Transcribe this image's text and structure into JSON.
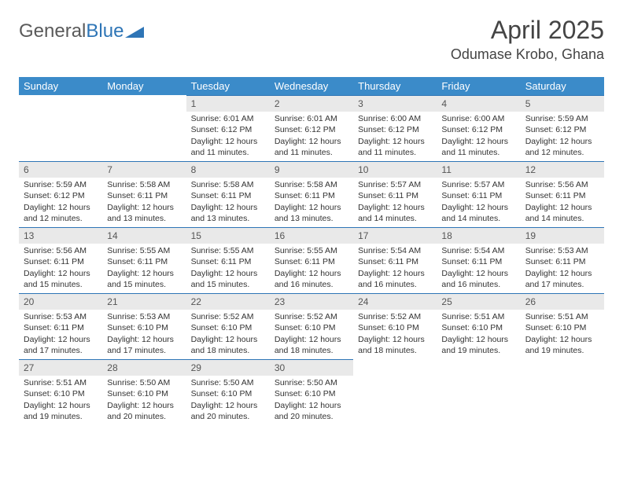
{
  "logo": {
    "word1": "General",
    "word2": "Blue"
  },
  "header": {
    "month_title": "April 2025",
    "location": "Odumase Krobo, Ghana"
  },
  "colors": {
    "header_bg": "#3b8bc9",
    "header_text": "#ffffff",
    "daynum_bg": "#e9e9e9",
    "daynum_border": "#2e75b6",
    "body_text": "#333333",
    "logo_gray": "#5a5a5a",
    "logo_blue": "#2e75b6"
  },
  "weekdays": [
    "Sunday",
    "Monday",
    "Tuesday",
    "Wednesday",
    "Thursday",
    "Friday",
    "Saturday"
  ],
  "weeks": [
    [
      null,
      null,
      {
        "n": "1",
        "sr": "Sunrise: 6:01 AM",
        "ss": "Sunset: 6:12 PM",
        "d1": "Daylight: 12 hours",
        "d2": "and 11 minutes."
      },
      {
        "n": "2",
        "sr": "Sunrise: 6:01 AM",
        "ss": "Sunset: 6:12 PM",
        "d1": "Daylight: 12 hours",
        "d2": "and 11 minutes."
      },
      {
        "n": "3",
        "sr": "Sunrise: 6:00 AM",
        "ss": "Sunset: 6:12 PM",
        "d1": "Daylight: 12 hours",
        "d2": "and 11 minutes."
      },
      {
        "n": "4",
        "sr": "Sunrise: 6:00 AM",
        "ss": "Sunset: 6:12 PM",
        "d1": "Daylight: 12 hours",
        "d2": "and 11 minutes."
      },
      {
        "n": "5",
        "sr": "Sunrise: 5:59 AM",
        "ss": "Sunset: 6:12 PM",
        "d1": "Daylight: 12 hours",
        "d2": "and 12 minutes."
      }
    ],
    [
      {
        "n": "6",
        "sr": "Sunrise: 5:59 AM",
        "ss": "Sunset: 6:12 PM",
        "d1": "Daylight: 12 hours",
        "d2": "and 12 minutes."
      },
      {
        "n": "7",
        "sr": "Sunrise: 5:58 AM",
        "ss": "Sunset: 6:11 PM",
        "d1": "Daylight: 12 hours",
        "d2": "and 13 minutes."
      },
      {
        "n": "8",
        "sr": "Sunrise: 5:58 AM",
        "ss": "Sunset: 6:11 PM",
        "d1": "Daylight: 12 hours",
        "d2": "and 13 minutes."
      },
      {
        "n": "9",
        "sr": "Sunrise: 5:58 AM",
        "ss": "Sunset: 6:11 PM",
        "d1": "Daylight: 12 hours",
        "d2": "and 13 minutes."
      },
      {
        "n": "10",
        "sr": "Sunrise: 5:57 AM",
        "ss": "Sunset: 6:11 PM",
        "d1": "Daylight: 12 hours",
        "d2": "and 14 minutes."
      },
      {
        "n": "11",
        "sr": "Sunrise: 5:57 AM",
        "ss": "Sunset: 6:11 PM",
        "d1": "Daylight: 12 hours",
        "d2": "and 14 minutes."
      },
      {
        "n": "12",
        "sr": "Sunrise: 5:56 AM",
        "ss": "Sunset: 6:11 PM",
        "d1": "Daylight: 12 hours",
        "d2": "and 14 minutes."
      }
    ],
    [
      {
        "n": "13",
        "sr": "Sunrise: 5:56 AM",
        "ss": "Sunset: 6:11 PM",
        "d1": "Daylight: 12 hours",
        "d2": "and 15 minutes."
      },
      {
        "n": "14",
        "sr": "Sunrise: 5:55 AM",
        "ss": "Sunset: 6:11 PM",
        "d1": "Daylight: 12 hours",
        "d2": "and 15 minutes."
      },
      {
        "n": "15",
        "sr": "Sunrise: 5:55 AM",
        "ss": "Sunset: 6:11 PM",
        "d1": "Daylight: 12 hours",
        "d2": "and 15 minutes."
      },
      {
        "n": "16",
        "sr": "Sunrise: 5:55 AM",
        "ss": "Sunset: 6:11 PM",
        "d1": "Daylight: 12 hours",
        "d2": "and 16 minutes."
      },
      {
        "n": "17",
        "sr": "Sunrise: 5:54 AM",
        "ss": "Sunset: 6:11 PM",
        "d1": "Daylight: 12 hours",
        "d2": "and 16 minutes."
      },
      {
        "n": "18",
        "sr": "Sunrise: 5:54 AM",
        "ss": "Sunset: 6:11 PM",
        "d1": "Daylight: 12 hours",
        "d2": "and 16 minutes."
      },
      {
        "n": "19",
        "sr": "Sunrise: 5:53 AM",
        "ss": "Sunset: 6:11 PM",
        "d1": "Daylight: 12 hours",
        "d2": "and 17 minutes."
      }
    ],
    [
      {
        "n": "20",
        "sr": "Sunrise: 5:53 AM",
        "ss": "Sunset: 6:11 PM",
        "d1": "Daylight: 12 hours",
        "d2": "and 17 minutes."
      },
      {
        "n": "21",
        "sr": "Sunrise: 5:53 AM",
        "ss": "Sunset: 6:10 PM",
        "d1": "Daylight: 12 hours",
        "d2": "and 17 minutes."
      },
      {
        "n": "22",
        "sr": "Sunrise: 5:52 AM",
        "ss": "Sunset: 6:10 PM",
        "d1": "Daylight: 12 hours",
        "d2": "and 18 minutes."
      },
      {
        "n": "23",
        "sr": "Sunrise: 5:52 AM",
        "ss": "Sunset: 6:10 PM",
        "d1": "Daylight: 12 hours",
        "d2": "and 18 minutes."
      },
      {
        "n": "24",
        "sr": "Sunrise: 5:52 AM",
        "ss": "Sunset: 6:10 PM",
        "d1": "Daylight: 12 hours",
        "d2": "and 18 minutes."
      },
      {
        "n": "25",
        "sr": "Sunrise: 5:51 AM",
        "ss": "Sunset: 6:10 PM",
        "d1": "Daylight: 12 hours",
        "d2": "and 19 minutes."
      },
      {
        "n": "26",
        "sr": "Sunrise: 5:51 AM",
        "ss": "Sunset: 6:10 PM",
        "d1": "Daylight: 12 hours",
        "d2": "and 19 minutes."
      }
    ],
    [
      {
        "n": "27",
        "sr": "Sunrise: 5:51 AM",
        "ss": "Sunset: 6:10 PM",
        "d1": "Daylight: 12 hours",
        "d2": "and 19 minutes."
      },
      {
        "n": "28",
        "sr": "Sunrise: 5:50 AM",
        "ss": "Sunset: 6:10 PM",
        "d1": "Daylight: 12 hours",
        "d2": "and 20 minutes."
      },
      {
        "n": "29",
        "sr": "Sunrise: 5:50 AM",
        "ss": "Sunset: 6:10 PM",
        "d1": "Daylight: 12 hours",
        "d2": "and 20 minutes."
      },
      {
        "n": "30",
        "sr": "Sunrise: 5:50 AM",
        "ss": "Sunset: 6:10 PM",
        "d1": "Daylight: 12 hours",
        "d2": "and 20 minutes."
      },
      null,
      null,
      null
    ]
  ]
}
